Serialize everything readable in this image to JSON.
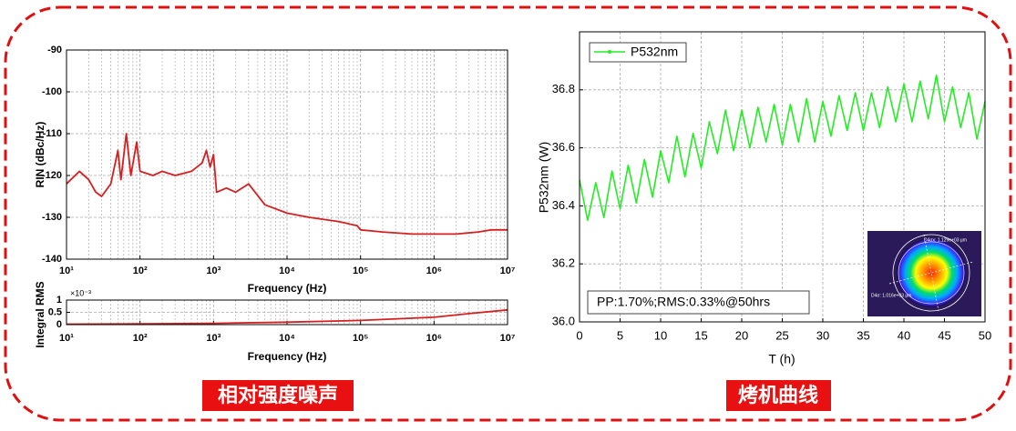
{
  "chart_data": [
    {
      "type": "line",
      "ylabel": "RIN (dBc/Hz)",
      "xlabel": "Frequency (Hz)",
      "xlog": true,
      "grid": true,
      "xlim": [
        10,
        10000000
      ],
      "xticks": [
        {
          "value": 10,
          "label": "10¹"
        },
        {
          "value": 100,
          "label": "10²"
        },
        {
          "value": 1000,
          "label": "10³"
        },
        {
          "value": 10000,
          "label": "10⁴"
        },
        {
          "value": 100000,
          "label": "10⁵"
        },
        {
          "value": 1000000,
          "label": "10⁶"
        },
        {
          "value": 10000000,
          "label": "10⁷"
        }
      ],
      "ylim": [
        -140,
        -90
      ],
      "yticks": [
        -90,
        -100,
        -110,
        -120,
        -130,
        -140
      ],
      "series": [
        {
          "name": "RIN",
          "color": "#d42020",
          "x": [
            10,
            15,
            20,
            25,
            30,
            40,
            50,
            55,
            65,
            75,
            90,
            100,
            150,
            200,
            300,
            500,
            700,
            800,
            900,
            1000,
            1100,
            1500,
            2000,
            3000,
            5000,
            10000,
            20000,
            50000,
            90000,
            100000,
            200000,
            500000,
            1000000,
            2000000,
            4000000,
            6000000,
            10000000
          ],
          "values": [
            -122,
            -119,
            -121,
            -124,
            -125,
            -122,
            -114,
            -121,
            -110,
            -120,
            -112,
            -119,
            -120,
            -119,
            -120,
            -119,
            -117,
            -114,
            -118,
            -115,
            -124,
            -123,
            -124,
            -122,
            -127,
            -129,
            -130,
            -131,
            -132,
            -133,
            -133.5,
            -134,
            -134,
            -134,
            -133.5,
            -133,
            -133
          ]
        }
      ]
    },
    {
      "type": "line",
      "ylabel": "Integral RMS",
      "xlabel": "Frequency (Hz)",
      "y_multiplier": "×10⁻³",
      "xlog": true,
      "grid": true,
      "xlim": [
        10,
        10000000
      ],
      "xticks": [
        {
          "value": 10,
          "label": "10¹"
        },
        {
          "value": 100,
          "label": "10²"
        },
        {
          "value": 1000,
          "label": "10³"
        },
        {
          "value": 10000,
          "label": "10⁴"
        },
        {
          "value": 100000,
          "label": "10⁵"
        },
        {
          "value": 1000000,
          "label": "10⁶"
        },
        {
          "value": 10000000,
          "label": "10⁷"
        }
      ],
      "ylim": [
        0,
        1
      ],
      "yticks": [
        0,
        0.5,
        1
      ],
      "series": [
        {
          "name": "Integral RMS",
          "color": "#d42020",
          "x": [
            10,
            100,
            1000,
            10000,
            100000,
            1000000,
            3000000,
            10000000
          ],
          "values": [
            0.02,
            0.03,
            0.05,
            0.1,
            0.17,
            0.3,
            0.45,
            0.6
          ]
        }
      ]
    },
    {
      "type": "line",
      "ylabel": "P532nm (W)",
      "xlabel": "T (h)",
      "grid": true,
      "xlim": [
        0,
        50
      ],
      "xticks": [
        0,
        5,
        10,
        15,
        20,
        25,
        30,
        35,
        40,
        45,
        50
      ],
      "ylim": [
        36,
        37
      ],
      "yticks": [
        {
          "value": 36,
          "label": "36.0"
        },
        36.2,
        36.4,
        36.6,
        36.8
      ],
      "annotations": [
        "PP:1.70%;RMS:0.33%@50hrs",
        "D4σx: 1.129e+03 µm",
        "D4σ: 1.016e+03 µm"
      ],
      "series": [
        {
          "name": "P532nm",
          "color": "#22ee22",
          "x": [
            0,
            1,
            2,
            3,
            4,
            5,
            6,
            7,
            8,
            9,
            10,
            11,
            12,
            13,
            14,
            15,
            16,
            17,
            18,
            19,
            20,
            21,
            22,
            23,
            24,
            25,
            26,
            27,
            28,
            29,
            30,
            31,
            32,
            33,
            34,
            35,
            36,
            37,
            38,
            39,
            40,
            41,
            42,
            43,
            44,
            45,
            46,
            47,
            48,
            49,
            50
          ],
          "values": [
            36.49,
            36.35,
            36.48,
            36.36,
            36.52,
            36.39,
            36.54,
            36.41,
            36.56,
            36.43,
            36.59,
            36.48,
            36.64,
            36.5,
            36.65,
            36.53,
            36.69,
            36.58,
            36.73,
            36.59,
            36.73,
            36.6,
            36.74,
            36.62,
            36.75,
            36.61,
            36.75,
            36.62,
            36.77,
            36.62,
            36.76,
            36.64,
            36.78,
            36.66,
            36.79,
            36.66,
            36.79,
            36.67,
            36.81,
            36.69,
            36.82,
            36.69,
            36.83,
            36.7,
            36.85,
            36.69,
            36.81,
            36.67,
            36.79,
            36.63,
            36.76
          ]
        }
      ]
    }
  ],
  "captions": [
    "相对强度噪声",
    "烤机曲线"
  ]
}
